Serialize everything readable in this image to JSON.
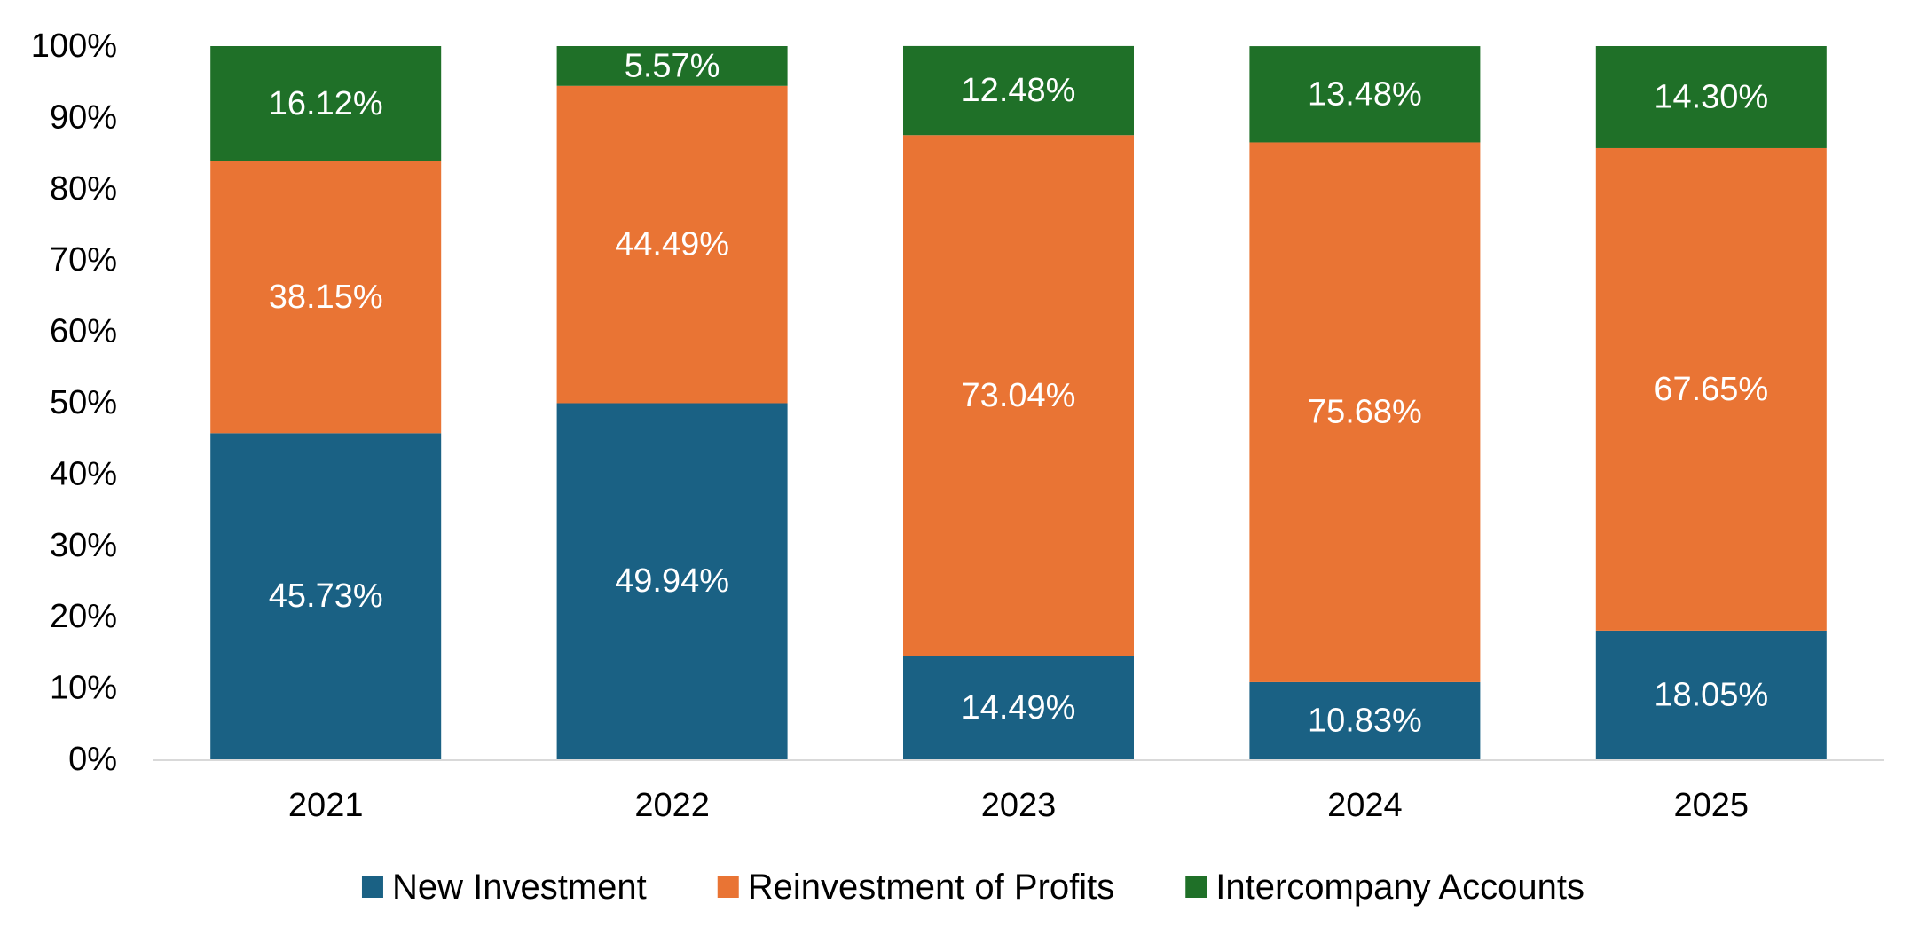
{
  "chart_data": {
    "type": "bar",
    "stacked": true,
    "percent_stacked": true,
    "categories": [
      "2021",
      "2022",
      "2023",
      "2024",
      "2025"
    ],
    "series": [
      {
        "name": "New Investment",
        "color": "#1a6184",
        "values": [
          45.73,
          49.94,
          14.49,
          10.83,
          18.05
        ],
        "labels": [
          "45.73%",
          "49.94%",
          "14.49%",
          "10.83%",
          "18.05%"
        ]
      },
      {
        "name": "Reinvestment of Profits",
        "color": "#e97434",
        "values": [
          38.15,
          44.49,
          73.04,
          75.68,
          67.65
        ],
        "labels": [
          "38.15%",
          "44.49%",
          "73.04%",
          "75.68%",
          "67.65%"
        ]
      },
      {
        "name": "Intercompany Accounts",
        "color": "#1f7028",
        "values": [
          16.12,
          5.57,
          12.48,
          13.48,
          14.3
        ],
        "labels": [
          "16.12%",
          "5.57%",
          "12.48%",
          "13.48%",
          "14.30%"
        ]
      }
    ],
    "ylim": [
      0,
      100
    ],
    "y_ticks": [
      "0%",
      "10%",
      "20%",
      "30%",
      "40%",
      "50%",
      "60%",
      "70%",
      "80%",
      "90%",
      "100%"
    ],
    "grid": false,
    "legend": "bottom",
    "title": "",
    "xlabel": "",
    "ylabel": ""
  }
}
